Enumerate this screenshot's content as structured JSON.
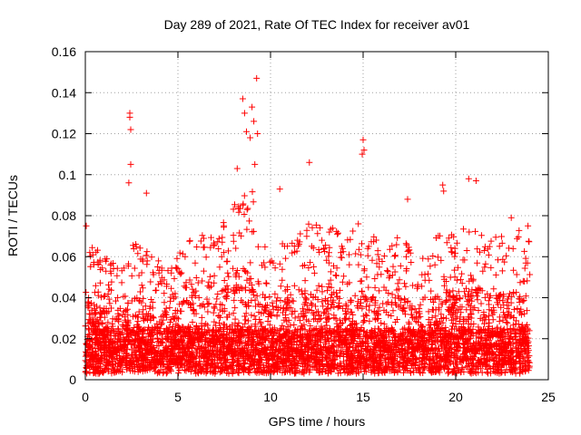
{
  "chart_data": {
    "type": "scatter",
    "title": "Day 289 of 2021, Rate Of TEC Index for receiver av01",
    "xlabel": "GPS time / hours",
    "ylabel": "ROTI / TECUs",
    "xlim": [
      0,
      25
    ],
    "ylim": [
      0,
      0.16
    ],
    "xticks": [
      0,
      5,
      10,
      15,
      20,
      25
    ],
    "yticks": [
      0,
      0.02,
      0.04,
      0.06,
      0.08,
      0.1,
      0.12,
      0.14,
      0.16
    ],
    "xtick_labels": [
      "0",
      "5",
      "10",
      "15",
      "20",
      "25"
    ],
    "ytick_labels": [
      "0",
      "0.02",
      "0.04",
      "0.06",
      "0.08",
      "0.1",
      "0.12",
      "0.14",
      "0.16"
    ],
    "grid": true,
    "marker": "+",
    "color": "#ff0000",
    "x_data_range": [
      0,
      24
    ],
    "notable_points": [
      {
        "x": 0.05,
        "y": 0.075
      },
      {
        "x": 2.4,
        "y": 0.13
      },
      {
        "x": 2.4,
        "y": 0.128
      },
      {
        "x": 2.45,
        "y": 0.122
      },
      {
        "x": 2.45,
        "y": 0.105
      },
      {
        "x": 2.35,
        "y": 0.096
      },
      {
        "x": 3.3,
        "y": 0.091
      },
      {
        "x": 8.5,
        "y": 0.137
      },
      {
        "x": 8.6,
        "y": 0.13
      },
      {
        "x": 9.25,
        "y": 0.147
      },
      {
        "x": 9.0,
        "y": 0.133
      },
      {
        "x": 9.1,
        "y": 0.126
      },
      {
        "x": 8.9,
        "y": 0.118
      },
      {
        "x": 9.3,
        "y": 0.12
      },
      {
        "x": 8.7,
        "y": 0.121
      },
      {
        "x": 8.2,
        "y": 0.103
      },
      {
        "x": 9.15,
        "y": 0.105
      },
      {
        "x": 12.1,
        "y": 0.106
      },
      {
        "x": 10.5,
        "y": 0.093
      },
      {
        "x": 15.0,
        "y": 0.117
      },
      {
        "x": 14.95,
        "y": 0.11
      },
      {
        "x": 15.05,
        "y": 0.112
      },
      {
        "x": 17.4,
        "y": 0.088
      },
      {
        "x": 19.3,
        "y": 0.095
      },
      {
        "x": 19.35,
        "y": 0.092
      },
      {
        "x": 20.7,
        "y": 0.098
      },
      {
        "x": 21.1,
        "y": 0.097
      },
      {
        "x": 23.0,
        "y": 0.079
      },
      {
        "x": 23.9,
        "y": 0.075
      }
    ],
    "activity_envelope": {
      "hours": [
        0,
        1,
        2,
        2.5,
        3,
        4,
        5,
        6,
        7,
        8,
        8.5,
        9,
        9.5,
        10,
        11,
        12,
        13,
        14,
        15,
        16,
        17,
        18,
        19,
        19.5,
        20,
        21,
        22,
        23,
        24
      ],
      "typical_max": [
        0.06,
        0.05,
        0.045,
        0.06,
        0.055,
        0.05,
        0.052,
        0.065,
        0.06,
        0.075,
        0.085,
        0.085,
        0.065,
        0.05,
        0.06,
        0.07,
        0.07,
        0.06,
        0.07,
        0.055,
        0.06,
        0.05,
        0.06,
        0.065,
        0.06,
        0.07,
        0.06,
        0.065,
        0.06
      ]
    }
  }
}
